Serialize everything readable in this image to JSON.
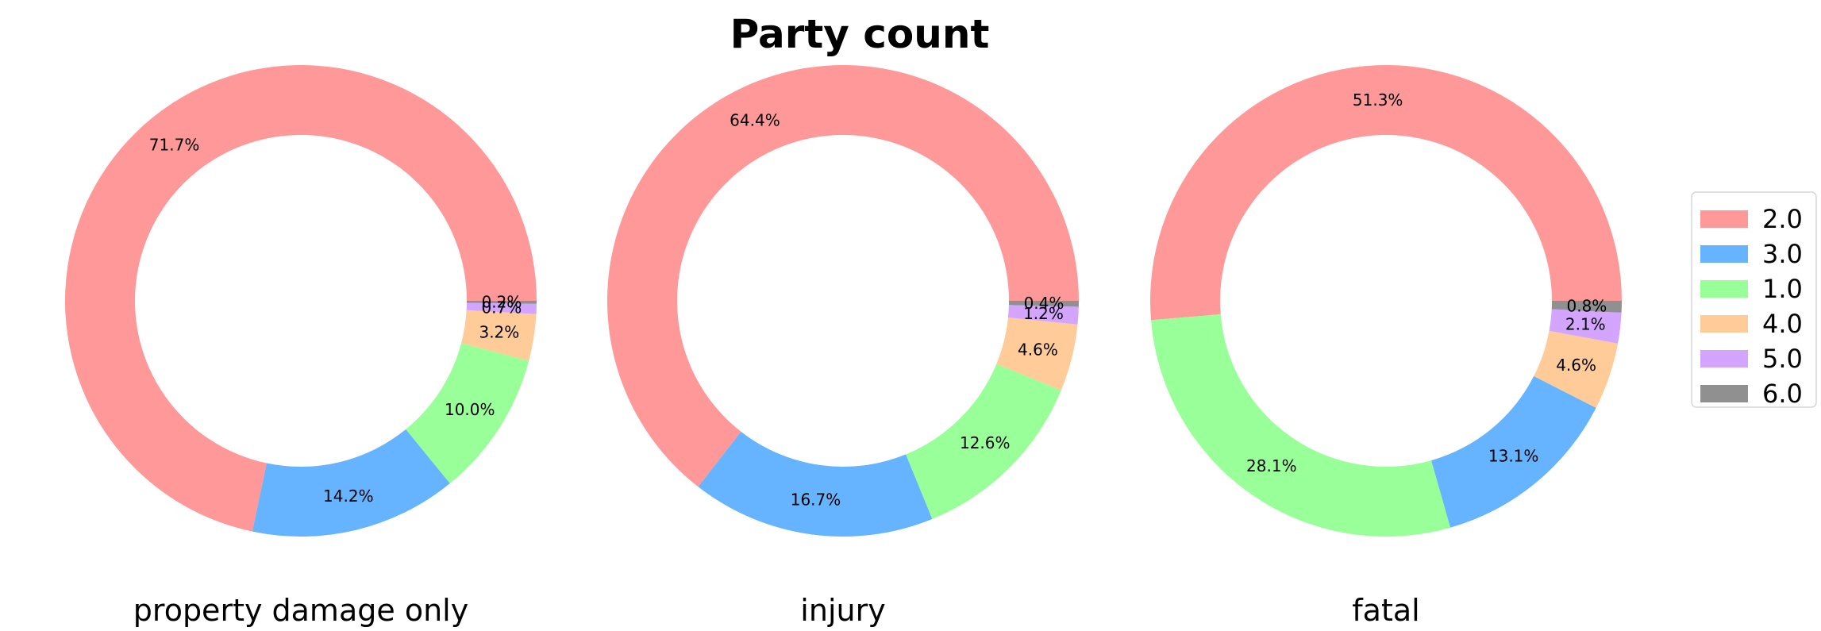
{
  "chart_data": {
    "type": "pie",
    "variant": "donut",
    "title": "Party count",
    "legend": {
      "placement": "right",
      "entries": [
        {
          "label": "2.0",
          "color": "#ff9999"
        },
        {
          "label": "3.0",
          "color": "#66b3ff"
        },
        {
          "label": "1.0",
          "color": "#99ff99"
        },
        {
          "label": "4.0",
          "color": "#ffcc99"
        },
        {
          "label": "5.0",
          "color": "#d4a5ff"
        },
        {
          "label": "6.0",
          "color": "#909090"
        }
      ]
    },
    "series": [
      {
        "name": "property damage only",
        "categories": [
          "2.0",
          "3.0",
          "1.0",
          "4.0",
          "5.0",
          "6.0"
        ],
        "values": [
          71.7,
          14.2,
          10.0,
          3.2,
          0.7,
          0.2
        ],
        "labels": [
          "71.7%",
          "14.2%",
          "10.0%",
          "3.2%",
          "0.7%",
          "0.2%"
        ]
      },
      {
        "name": "injury",
        "categories": [
          "2.0",
          "3.0",
          "1.0",
          "4.0",
          "5.0",
          "6.0"
        ],
        "values": [
          64.4,
          16.7,
          12.6,
          4.6,
          1.2,
          0.4
        ],
        "labels": [
          "64.4%",
          "16.7%",
          "12.6%",
          "4.6%",
          "1.2%",
          "0.4%"
        ]
      },
      {
        "name": "fatal",
        "categories": [
          "2.0",
          "1.0",
          "3.0",
          "4.0",
          "5.0",
          "6.0"
        ],
        "values": [
          51.3,
          28.1,
          13.1,
          4.6,
          2.1,
          0.8
        ],
        "labels": [
          "51.3%",
          "28.1%",
          "13.1%",
          "4.6%",
          "2.1%",
          "0.8%"
        ]
      }
    ]
  }
}
